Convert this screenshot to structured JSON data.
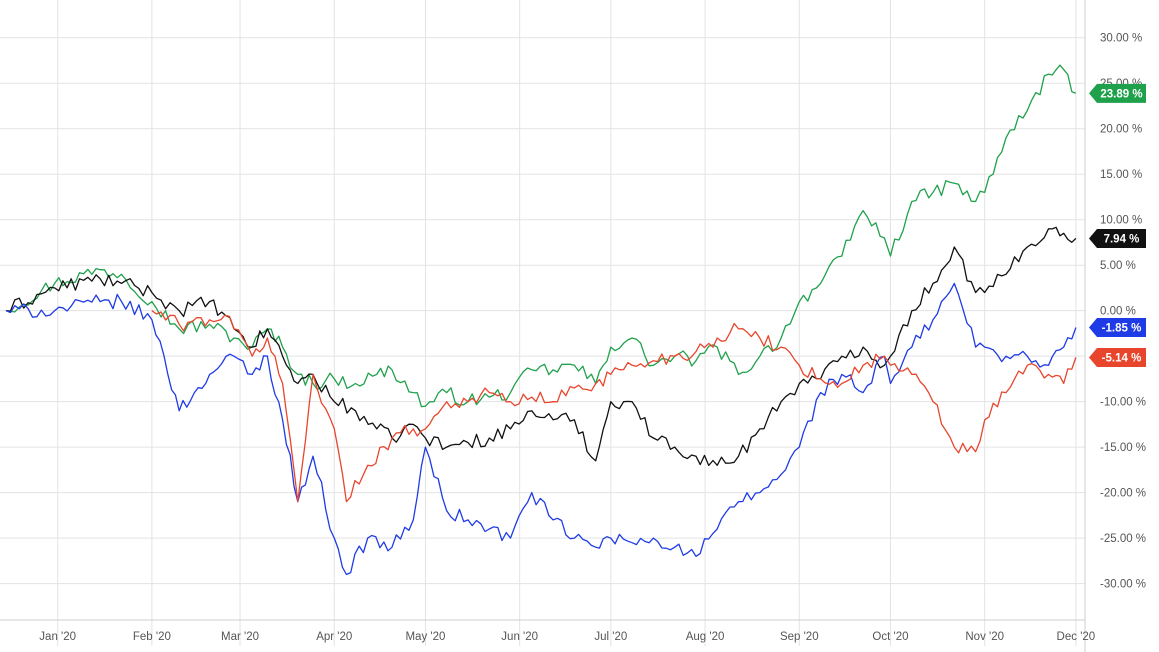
{
  "chart_data": {
    "type": "line",
    "title": "",
    "xlabel": "",
    "ylabel": "",
    "x_tick_labels": [
      "Jan '20",
      "Feb '20",
      "Mar '20",
      "Apr '20",
      "May '20",
      "Jun '20",
      "Jul '20",
      "Aug '20",
      "Sep '20",
      "Oct '20",
      "Nov '20",
      "Dec '20"
    ],
    "x_tick_dates": [
      "2020-01-01",
      "2020-02-01",
      "2020-03-01",
      "2020-04-01",
      "2020-05-01",
      "2020-06-01",
      "2020-07-01",
      "2020-08-01",
      "2020-09-01",
      "2020-10-01",
      "2020-11-01",
      "2020-12-01"
    ],
    "xlim": [
      "2019-12-15",
      "2020-12-04"
    ],
    "y_ticks": [
      30,
      25,
      20,
      15,
      10,
      5,
      0,
      -5,
      -10,
      -15,
      -20,
      -25,
      -30
    ],
    "y_tick_labels": [
      "30.00 %",
      "25.00 %",
      "20.00 %",
      "15.00 %",
      "10.00 %",
      "5.00 %",
      "0.00 %",
      "-5.00 %",
      "-10.00 %",
      "-15.00 %",
      "-20.00 %",
      "-25.00 %",
      "-30.00 %"
    ],
    "ylim": [
      -34,
      34
    ],
    "y_unit": "%",
    "grid": true,
    "legend": "none",
    "series": [
      {
        "color": "#1fa14b",
        "end_label": "23.89 %",
        "points": [
          [
            "2019-12-15",
            0
          ],
          [
            "2019-12-31",
            3
          ],
          [
            "2020-01-15",
            4.5
          ],
          [
            "2020-01-22",
            4
          ],
          [
            "2020-02-01",
            1
          ],
          [
            "2020-02-10",
            -2
          ],
          [
            "2020-02-20",
            -1.5
          ],
          [
            "2020-02-28",
            -3
          ],
          [
            "2020-03-05",
            -4
          ],
          [
            "2020-03-10",
            -2
          ],
          [
            "2020-03-15",
            -4
          ],
          [
            "2020-03-20",
            -7
          ],
          [
            "2020-03-25",
            -8
          ],
          [
            "2020-04-01",
            -7.5
          ],
          [
            "2020-04-08",
            -8
          ],
          [
            "2020-04-15",
            -7
          ],
          [
            "2020-04-20",
            -6.5
          ],
          [
            "2020-04-27",
            -9
          ],
          [
            "2020-05-01",
            -10.5
          ],
          [
            "2020-05-08",
            -9
          ],
          [
            "2020-05-15",
            -10
          ],
          [
            "2020-05-22",
            -9.5
          ],
          [
            "2020-05-29",
            -9
          ],
          [
            "2020-06-05",
            -6.5
          ],
          [
            "2020-06-12",
            -6.5
          ],
          [
            "2020-06-19",
            -6
          ],
          [
            "2020-06-26",
            -8
          ],
          [
            "2020-07-01",
            -4
          ],
          [
            "2020-07-08",
            -3
          ],
          [
            "2020-07-15",
            -6
          ],
          [
            "2020-07-22",
            -5
          ],
          [
            "2020-07-29",
            -5.5
          ],
          [
            "2020-08-05",
            -4
          ],
          [
            "2020-08-12",
            -7
          ],
          [
            "2020-08-19",
            -5
          ],
          [
            "2020-08-26",
            -3
          ],
          [
            "2020-09-01",
            1
          ],
          [
            "2020-09-08",
            3
          ],
          [
            "2020-09-15",
            6
          ],
          [
            "2020-09-22",
            11
          ],
          [
            "2020-09-29",
            8
          ],
          [
            "2020-10-01",
            6
          ],
          [
            "2020-10-08",
            12
          ],
          [
            "2020-10-15",
            13
          ],
          [
            "2020-10-22",
            14
          ],
          [
            "2020-10-29",
            12
          ],
          [
            "2020-11-01",
            13
          ],
          [
            "2020-11-08",
            19
          ],
          [
            "2020-11-15",
            22
          ],
          [
            "2020-11-22",
            26
          ],
          [
            "2020-11-27",
            26.5
          ],
          [
            "2020-12-01",
            23.89
          ]
        ]
      },
      {
        "color": "#111111",
        "end_label": "7.94 %",
        "points": [
          [
            "2019-12-15",
            0
          ],
          [
            "2019-12-31",
            2.5
          ],
          [
            "2020-01-15",
            3.5
          ],
          [
            "2020-01-22",
            3
          ],
          [
            "2020-02-01",
            2
          ],
          [
            "2020-02-10",
            0
          ],
          [
            "2020-02-20",
            1
          ],
          [
            "2020-02-28",
            -2
          ],
          [
            "2020-03-05",
            -4
          ],
          [
            "2020-03-10",
            -2
          ],
          [
            "2020-03-15",
            -5
          ],
          [
            "2020-03-20",
            -8
          ],
          [
            "2020-03-25",
            -7
          ],
          [
            "2020-04-01",
            -10
          ],
          [
            "2020-04-08",
            -11
          ],
          [
            "2020-04-15",
            -13
          ],
          [
            "2020-04-20",
            -14
          ],
          [
            "2020-04-27",
            -12.5
          ],
          [
            "2020-05-01",
            -14
          ],
          [
            "2020-05-08",
            -15
          ],
          [
            "2020-05-15",
            -14.5
          ],
          [
            "2020-05-22",
            -14
          ],
          [
            "2020-05-29",
            -13
          ],
          [
            "2020-06-05",
            -11
          ],
          [
            "2020-06-12",
            -12
          ],
          [
            "2020-06-19",
            -12
          ],
          [
            "2020-06-26",
            -16.5
          ],
          [
            "2020-07-01",
            -10
          ],
          [
            "2020-07-08",
            -10
          ],
          [
            "2020-07-15",
            -14
          ],
          [
            "2020-07-22",
            -15
          ],
          [
            "2020-07-29",
            -16
          ],
          [
            "2020-08-05",
            -17
          ],
          [
            "2020-08-12",
            -16
          ],
          [
            "2020-08-19",
            -13
          ],
          [
            "2020-08-26",
            -10
          ],
          [
            "2020-09-01",
            -8
          ],
          [
            "2020-09-08",
            -7.5
          ],
          [
            "2020-09-15",
            -5
          ],
          [
            "2020-09-22",
            -4
          ],
          [
            "2020-09-29",
            -6
          ],
          [
            "2020-10-01",
            -5
          ],
          [
            "2020-10-08",
            0
          ],
          [
            "2020-10-15",
            3
          ],
          [
            "2020-10-22",
            7
          ],
          [
            "2020-10-29",
            2
          ],
          [
            "2020-11-01",
            2
          ],
          [
            "2020-11-08",
            4
          ],
          [
            "2020-11-15",
            7
          ],
          [
            "2020-11-22",
            9
          ],
          [
            "2020-11-27",
            8.5
          ],
          [
            "2020-12-01",
            7.94
          ]
        ]
      },
      {
        "color": "#1f3be6",
        "end_label": "-1.85 %",
        "points": [
          [
            "2019-12-15",
            0
          ],
          [
            "2019-12-31",
            0
          ],
          [
            "2020-01-15",
            1
          ],
          [
            "2020-01-22",
            1
          ],
          [
            "2020-02-01",
            -1
          ],
          [
            "2020-02-05",
            -5
          ],
          [
            "2020-02-10",
            -11
          ],
          [
            "2020-02-15",
            -9
          ],
          [
            "2020-02-20",
            -7
          ],
          [
            "2020-02-28",
            -5
          ],
          [
            "2020-03-05",
            -7
          ],
          [
            "2020-03-10",
            -5
          ],
          [
            "2020-03-15",
            -12
          ],
          [
            "2020-03-20",
            -21
          ],
          [
            "2020-03-25",
            -16
          ],
          [
            "2020-04-01",
            -25
          ],
          [
            "2020-04-05",
            -29
          ],
          [
            "2020-04-12",
            -25
          ],
          [
            "2020-04-20",
            -26
          ],
          [
            "2020-04-27",
            -23
          ],
          [
            "2020-05-01",
            -15
          ],
          [
            "2020-05-08",
            -22
          ],
          [
            "2020-05-15",
            -23
          ],
          [
            "2020-05-22",
            -24
          ],
          [
            "2020-05-29",
            -25
          ],
          [
            "2020-06-05",
            -20
          ],
          [
            "2020-06-12",
            -23
          ],
          [
            "2020-06-19",
            -25
          ],
          [
            "2020-06-26",
            -26
          ],
          [
            "2020-07-01",
            -25
          ],
          [
            "2020-07-08",
            -25.5
          ],
          [
            "2020-07-15",
            -25
          ],
          [
            "2020-07-22",
            -26
          ],
          [
            "2020-07-29",
            -27
          ],
          [
            "2020-08-05",
            -24
          ],
          [
            "2020-08-12",
            -21
          ],
          [
            "2020-08-19",
            -20
          ],
          [
            "2020-08-26",
            -18
          ],
          [
            "2020-09-01",
            -15
          ],
          [
            "2020-09-08",
            -9
          ],
          [
            "2020-09-15",
            -7
          ],
          [
            "2020-09-22",
            -9
          ],
          [
            "2020-09-29",
            -5
          ],
          [
            "2020-10-01",
            -8
          ],
          [
            "2020-10-08",
            -4
          ],
          [
            "2020-10-15",
            -1
          ],
          [
            "2020-10-22",
            3
          ],
          [
            "2020-10-29",
            -4
          ],
          [
            "2020-11-01",
            -4
          ],
          [
            "2020-11-08",
            -5
          ],
          [
            "2020-11-15",
            -5
          ],
          [
            "2020-11-22",
            -6
          ],
          [
            "2020-11-27",
            -4
          ],
          [
            "2020-12-01",
            -1.85
          ]
        ]
      },
      {
        "color": "#e8452d",
        "end_label": "-5.14 %",
        "points": [
          [
            "2020-02-01",
            0
          ],
          [
            "2020-02-10",
            -1.5
          ],
          [
            "2020-02-20",
            -1
          ],
          [
            "2020-02-25",
            -0.5
          ],
          [
            "2020-02-28",
            -2
          ],
          [
            "2020-03-05",
            -5
          ],
          [
            "2020-03-10",
            -3
          ],
          [
            "2020-03-15",
            -8
          ],
          [
            "2020-03-20",
            -21
          ],
          [
            "2020-03-25",
            -7
          ],
          [
            "2020-04-01",
            -13
          ],
          [
            "2020-04-05",
            -21
          ],
          [
            "2020-04-12",
            -17
          ],
          [
            "2020-04-20",
            -14
          ],
          [
            "2020-04-27",
            -13
          ],
          [
            "2020-05-01",
            -13
          ],
          [
            "2020-05-08",
            -10
          ],
          [
            "2020-05-15",
            -10
          ],
          [
            "2020-05-22",
            -9
          ],
          [
            "2020-05-29",
            -10
          ],
          [
            "2020-06-05",
            -9.5
          ],
          [
            "2020-06-12",
            -10
          ],
          [
            "2020-06-19",
            -8.5
          ],
          [
            "2020-06-26",
            -8
          ],
          [
            "2020-07-01",
            -7
          ],
          [
            "2020-07-08",
            -6
          ],
          [
            "2020-07-15",
            -5.5
          ],
          [
            "2020-07-22",
            -5
          ],
          [
            "2020-07-29",
            -4.5
          ],
          [
            "2020-08-05",
            -3
          ],
          [
            "2020-08-12",
            -2
          ],
          [
            "2020-08-19",
            -3
          ],
          [
            "2020-08-26",
            -4
          ],
          [
            "2020-09-01",
            -6
          ],
          [
            "2020-09-08",
            -7.5
          ],
          [
            "2020-09-15",
            -8
          ],
          [
            "2020-09-22",
            -6
          ],
          [
            "2020-09-29",
            -5
          ],
          [
            "2020-10-01",
            -6
          ],
          [
            "2020-10-08",
            -7
          ],
          [
            "2020-10-15",
            -10
          ],
          [
            "2020-10-22",
            -15
          ],
          [
            "2020-10-29",
            -15.5
          ],
          [
            "2020-11-01",
            -12
          ],
          [
            "2020-11-08",
            -9
          ],
          [
            "2020-11-15",
            -6
          ],
          [
            "2020-11-22",
            -7
          ],
          [
            "2020-11-27",
            -8
          ],
          [
            "2020-12-01",
            -5.14
          ]
        ]
      }
    ]
  }
}
